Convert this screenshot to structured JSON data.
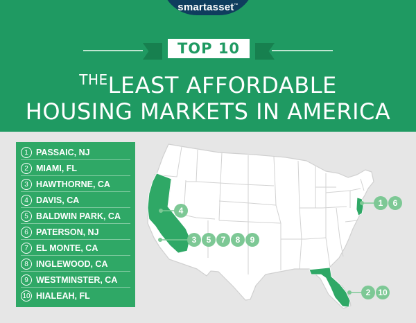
{
  "brand": {
    "name": "smartasset",
    "mark": "™"
  },
  "header": {
    "badge": "TOP 10",
    "title_prefix": "THE",
    "title_line1": "LEAST AFFORDABLE",
    "title_line2": "HOUSING MARKETS IN AMERICA"
  },
  "rankings": [
    {
      "rank": "1",
      "city": "PASSAIC, NJ"
    },
    {
      "rank": "2",
      "city": "MIAMI, FL"
    },
    {
      "rank": "3",
      "city": "HAWTHORNE, CA"
    },
    {
      "rank": "4",
      "city": "DAVIS, CA"
    },
    {
      "rank": "5",
      "city": "BALDWIN PARK, CA"
    },
    {
      "rank": "6",
      "city": "PATERSON, NJ"
    },
    {
      "rank": "7",
      "city": "EL MONTE, CA"
    },
    {
      "rank": "8",
      "city": "INGLEWOOD, CA"
    },
    {
      "rank": "9",
      "city": "WESTMINSTER, CA"
    },
    {
      "rank": "10",
      "city": "HIALEAH, FL"
    }
  ],
  "map": {
    "highlighted_states": [
      "CA",
      "NJ",
      "FL"
    ],
    "markers": [
      {
        "state": "NJ",
        "ranks": [
          "1",
          "6"
        ]
      },
      {
        "state": "CA-north",
        "ranks": [
          "4"
        ]
      },
      {
        "state": "CA-south",
        "ranks": [
          "3",
          "5",
          "7",
          "8",
          "9"
        ]
      },
      {
        "state": "FL",
        "ranks": [
          "2",
          "10"
        ]
      }
    ]
  },
  "colors": {
    "header_green": "#1f9a62",
    "highlight_green": "#2fa866",
    "marker_green": "#7dc895",
    "logo_navy": "#0f3d5e",
    "background": "#e6e6e6"
  }
}
